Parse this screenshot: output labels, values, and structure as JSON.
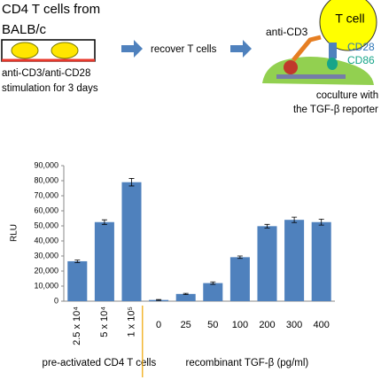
{
  "diagram": {
    "step1_title": [
      "CD4 T cells from",
      "BALB/c"
    ],
    "step1_caption": [
      "anti-CD3/anti-CD28",
      "stimulation for  3 days"
    ],
    "step2": "recover T cells",
    "step3_labels": {
      "t_cell": "T cell",
      "anti_cd3": "anti-CD3",
      "cd28": "CD28",
      "cd86": "CD86"
    },
    "step3_caption": [
      "coculture with",
      "the TGF-β reporter cells"
    ]
  },
  "chart_data": {
    "type": "bar",
    "y_label": "RLU",
    "color": "#4f81bd",
    "categories": [
      "2.5 x 10⁴",
      "5 x 10⁴",
      "1 x 10⁵",
      "0",
      "25",
      "50",
      "100",
      "200",
      "300",
      "400"
    ],
    "values": [
      26500,
      52500,
      79000,
      800,
      4800,
      12000,
      29200,
      49800,
      54000,
      52500
    ],
    "errors": [
      800,
      1500,
      2500,
      300,
      400,
      800,
      800,
      1200,
      1800,
      2000
    ],
    "groups": [
      {
        "label": "pre-activated CD4 T cells",
        "size": 3
      },
      {
        "label": "recombinant TGF-β (pg/ml)",
        "size": 7
      }
    ],
    "ylim": [
      0,
      90000
    ],
    "yticks": [
      0,
      {
        "value": 10000,
        "label": "10,000"
      },
      {
        "value": 20000,
        "label": "20,000"
      },
      {
        "value": 30000,
        "label": "30,000"
      },
      {
        "value": 40000,
        "label": "40,000"
      },
      {
        "value": 50000,
        "label": "50,000"
      },
      {
        "value": 60000,
        "label": "60,000"
      },
      {
        "value": 70000,
        "label": "70,000"
      },
      {
        "value": 80000,
        "label": "80,000"
      },
      {
        "value": 90000,
        "label": "90,000"
      }
    ]
  }
}
